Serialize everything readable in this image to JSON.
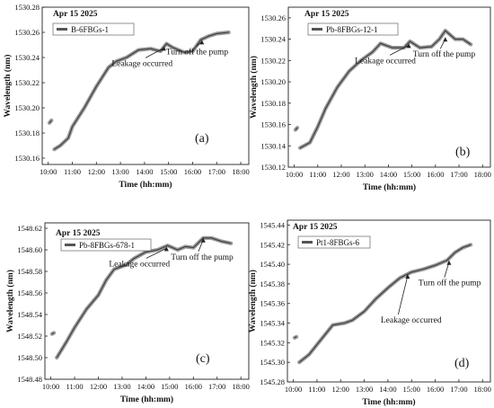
{
  "chart_data": [
    {
      "type": "line",
      "panel_label": "(a)",
      "date_text": "Apr 15 2025",
      "legend": [
        "B-6FBGs-1"
      ],
      "xlabel": "Time (hh:mm)",
      "ylabel": "Wavelength (nm)",
      "xlim": [
        "09:45",
        "18:20"
      ],
      "ylim": [
        1530.155,
        1530.28
      ],
      "x_ticks": [
        "10:00",
        "11:00",
        "12:00",
        "13:00",
        "14:00",
        "15:00",
        "16:00",
        "17:00",
        "18:00"
      ],
      "y_ticks": [
        "1530.16",
        "1530.18",
        "1530.20",
        "1530.22",
        "1530.24",
        "1530.26",
        "1530.28"
      ],
      "annotations": [
        {
          "text": "Leakage occurred",
          "x": "14:48",
          "y": 1530.249
        },
        {
          "text": "Turn off the pump",
          "x": "16:23",
          "y": 1530.254
        }
      ],
      "series": [
        {
          "name": "B-6FBGs-1",
          "points": [
            [
              "10:03",
              1530.188
            ],
            [
              "10:08",
              1530.19
            ],
            [
              "10:15",
              1530.167
            ],
            [
              "10:30",
              1530.17
            ],
            [
              "10:50",
              1530.176
            ],
            [
              "11:00",
              1530.185
            ],
            [
              "11:30",
              1530.2
            ],
            [
              "12:00",
              1530.217
            ],
            [
              "12:30",
              1530.232
            ],
            [
              "12:50",
              1530.237
            ],
            [
              "13:15",
              1530.24
            ],
            [
              "13:45",
              1530.246
            ],
            [
              "14:15",
              1530.247
            ],
            [
              "14:40",
              1530.245
            ],
            [
              "14:55",
              1530.251
            ],
            [
              "15:10",
              1530.248
            ],
            [
              "15:40",
              1530.244
            ],
            [
              "16:00",
              1530.245
            ],
            [
              "16:20",
              1530.254
            ],
            [
              "16:40",
              1530.257
            ],
            [
              "17:00",
              1530.259
            ],
            [
              "17:30",
              1530.26
            ]
          ]
        }
      ]
    },
    {
      "type": "line",
      "panel_label": "(b)",
      "date_text": "Apr 15 2025",
      "legend": [
        "Pb-8FBGs-12-1"
      ],
      "xlabel": "Time (hh:mm)",
      "ylabel": "Wavelength (nm)",
      "xlim": [
        "09:45",
        "18:20"
      ],
      "ylim": [
        1530.12,
        1530.27
      ],
      "x_ticks": [
        "10:00",
        "11:00",
        "12:00",
        "13:00",
        "14:00",
        "15:00",
        "16:00",
        "17:00",
        "18:00"
      ],
      "y_ticks": [
        "1530.12",
        "1530.14",
        "1530.16",
        "1530.18",
        "1530.20",
        "1530.22",
        "1530.24",
        "1530.26"
      ],
      "annotations": [
        {
          "text": "Leakage occurred",
          "x": "14:52",
          "y": 1530.236
        },
        {
          "text": "Turn off the pump",
          "x": "16:25",
          "y": 1530.242
        }
      ],
      "series": [
        {
          "name": "Pb-8FBGs-12-1",
          "points": [
            [
              "10:03",
              1530.155
            ],
            [
              "10:08",
              1530.157
            ],
            [
              "10:15",
              1530.138
            ],
            [
              "10:40",
              1530.143
            ],
            [
              "11:00",
              1530.158
            ],
            [
              "11:20",
              1530.175
            ],
            [
              "11:50",
              1530.195
            ],
            [
              "12:20",
              1530.21
            ],
            [
              "12:50",
              1530.22
            ],
            [
              "13:20",
              1530.228
            ],
            [
              "13:40",
              1530.236
            ],
            [
              "14:10",
              1530.232
            ],
            [
              "14:40",
              1530.232
            ],
            [
              "14:55",
              1530.238
            ],
            [
              "15:20",
              1530.232
            ],
            [
              "15:50",
              1530.233
            ],
            [
              "16:10",
              1530.24
            ],
            [
              "16:25",
              1530.248
            ],
            [
              "16:50",
              1530.24
            ],
            [
              "17:10",
              1530.24
            ],
            [
              "17:30",
              1530.235
            ]
          ]
        }
      ]
    },
    {
      "type": "line",
      "panel_label": "(c)",
      "date_text": "Apr 15 2025",
      "legend": [
        "Pb-8FBGs-678-1"
      ],
      "xlabel": "Time (hh:mm)",
      "ylabel": "Wavelength (nm)",
      "xlim": [
        "09:45",
        "18:20"
      ],
      "ylim": [
        1548.48,
        1548.625
      ],
      "x_ticks": [
        "10:00",
        "11:00",
        "12:00",
        "13:00",
        "14:00",
        "15:00",
        "16:00",
        "17:00",
        "18:00"
      ],
      "y_ticks": [
        "1548.48",
        "1548.50",
        "1548.52",
        "1548.54",
        "1548.56",
        "1548.58",
        "1548.60",
        "1548.62"
      ],
      "annotations": [
        {
          "text": "Leakage occurred",
          "x": "14:52",
          "y": 1548.603
        },
        {
          "text": "Turn off the pump",
          "x": "16:25",
          "y": 1548.611
        }
      ],
      "series": [
        {
          "name": "Pb-8FBGs-678-1",
          "points": [
            [
              "10:03",
              1548.522
            ],
            [
              "10:08",
              1548.523
            ],
            [
              "10:15",
              1548.5
            ],
            [
              "10:40",
              1548.515
            ],
            [
              "11:00",
              1548.528
            ],
            [
              "11:30",
              1548.545
            ],
            [
              "12:00",
              1548.558
            ],
            [
              "12:20",
              1548.572
            ],
            [
              "12:40",
              1548.582
            ],
            [
              "13:10",
              1548.586
            ],
            [
              "13:30",
              1548.592
            ],
            [
              "14:00",
              1548.598
            ],
            [
              "14:30",
              1548.6
            ],
            [
              "14:55",
              1548.604
            ],
            [
              "15:20",
              1548.6
            ],
            [
              "15:40",
              1548.603
            ],
            [
              "16:00",
              1548.602
            ],
            [
              "16:25",
              1548.611
            ],
            [
              "16:45",
              1548.611
            ],
            [
              "17:10",
              1548.608
            ],
            [
              "17:35",
              1548.606
            ]
          ]
        }
      ]
    },
    {
      "type": "line",
      "panel_label": "(d)",
      "date_text": "Apr 15 2025",
      "legend": [
        "Pt1-8FBGs-6"
      ],
      "xlabel": "Time (hh:mm)",
      "ylabel": "Wavelength (nm)",
      "xlim": [
        "09:45",
        "18:20"
      ],
      "ylim": [
        1545.28,
        1545.445
      ],
      "x_ticks": [
        "10:00",
        "11:00",
        "12:00",
        "13:00",
        "14:00",
        "15:00",
        "16:00",
        "17:00",
        "18:00"
      ],
      "y_ticks": [
        "1545.28",
        "1545.30",
        "1545.32",
        "1545.34",
        "1545.36",
        "1545.38",
        "1545.40",
        "1545.42",
        "1545.44"
      ],
      "annotations": [
        {
          "text": "Leakage occurred",
          "x": "14:50",
          "y": 1545.39
        },
        {
          "text": "Turn off the pump",
          "x": "16:35",
          "y": 1545.404
        }
      ],
      "series": [
        {
          "name": "Pt1-8FBGs-6",
          "points": [
            [
              "10:03",
              1545.325
            ],
            [
              "10:08",
              1545.326
            ],
            [
              "10:15",
              1545.3
            ],
            [
              "10:40",
              1545.308
            ],
            [
              "11:00",
              1545.318
            ],
            [
              "11:20",
              1545.328
            ],
            [
              "11:40",
              1545.338
            ],
            [
              "12:10",
              1545.34
            ],
            [
              "12:30",
              1545.343
            ],
            [
              "13:00",
              1545.352
            ],
            [
              "13:30",
              1545.365
            ],
            [
              "14:00",
              1545.376
            ],
            [
              "14:30",
              1545.386
            ],
            [
              "15:00",
              1545.392
            ],
            [
              "15:30",
              1545.395
            ],
            [
              "16:00",
              1545.399
            ],
            [
              "16:30",
              1545.404
            ],
            [
              "16:50",
              1545.412
            ],
            [
              "17:10",
              1545.417
            ],
            [
              "17:30",
              1545.42
            ]
          ]
        }
      ]
    }
  ]
}
